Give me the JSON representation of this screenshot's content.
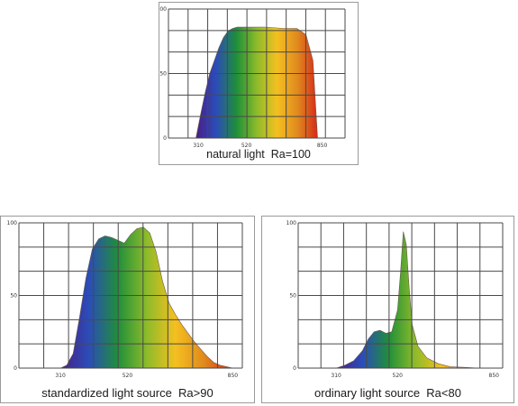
{
  "colors": {
    "grid": "#4a4a4a",
    "frame": "#9a9a9a",
    "spectrum": [
      "#4a1e86",
      "#2b4db8",
      "#1f8f3a",
      "#8dbb2a",
      "#f4c020",
      "#e08a1e",
      "#d62a1a"
    ]
  },
  "chart_data": [
    {
      "type": "area",
      "title": "natural light  Ra=100",
      "xlabel": "",
      "ylabel": "",
      "xlim": [
        180,
        950
      ],
      "ylim": [
        0,
        100
      ],
      "x_ticks": [
        "310",
        "520",
        "850"
      ],
      "y_ticks": [
        "0",
        "50",
        "100"
      ],
      "grid": true,
      "series": [
        {
          "x": [
            300,
            320,
            340,
            360,
            380,
            400,
            420,
            440,
            460,
            480,
            500,
            540,
            600,
            680,
            740,
            780,
            810,
            830
          ],
          "values": [
            0,
            18,
            35,
            50,
            60,
            70,
            78,
            83,
            85,
            86,
            86,
            86,
            86,
            85,
            85,
            80,
            60,
            0
          ]
        }
      ]
    },
    {
      "type": "area",
      "title": "standardized light source  Ra>90",
      "xlabel": "",
      "ylabel": "",
      "xlim": [
        180,
        880
      ],
      "ylim": [
        0,
        100
      ],
      "x_ticks": [
        "310",
        "520",
        "850"
      ],
      "y_ticks": [
        "0",
        "50",
        "100"
      ],
      "grid": true,
      "series": [
        {
          "x": [
            310,
            330,
            350,
            370,
            390,
            410,
            430,
            450,
            470,
            490,
            510,
            530,
            550,
            570,
            590,
            610,
            630,
            650,
            670,
            690,
            710,
            730,
            750,
            770,
            790,
            810,
            830,
            850
          ],
          "values": [
            0,
            2,
            10,
            35,
            62,
            82,
            89,
            91,
            90,
            88,
            86,
            92,
            96,
            97,
            93,
            80,
            60,
            45,
            37,
            30,
            24,
            18,
            13,
            8,
            4,
            2,
            1,
            0
          ]
        }
      ]
    },
    {
      "type": "area",
      "title": "ordinary light source  Ra<80",
      "xlabel": "",
      "ylabel": "",
      "xlim": [
        180,
        880
      ],
      "ylim": [
        0,
        100
      ],
      "x_ticks": [
        "310",
        "520",
        "850"
      ],
      "y_ticks": [
        "0",
        "50",
        "100"
      ],
      "grid": true,
      "series": [
        {
          "x": [
            310,
            340,
            370,
            400,
            420,
            440,
            460,
            480,
            500,
            520,
            530,
            540,
            550,
            560,
            570,
            590,
            620,
            660,
            700,
            750,
            800,
            850
          ],
          "values": [
            0,
            2,
            5,
            12,
            20,
            25,
            26,
            24,
            25,
            40,
            65,
            94,
            85,
            55,
            30,
            15,
            7,
            3,
            1,
            0.5,
            0,
            0
          ]
        }
      ]
    }
  ]
}
